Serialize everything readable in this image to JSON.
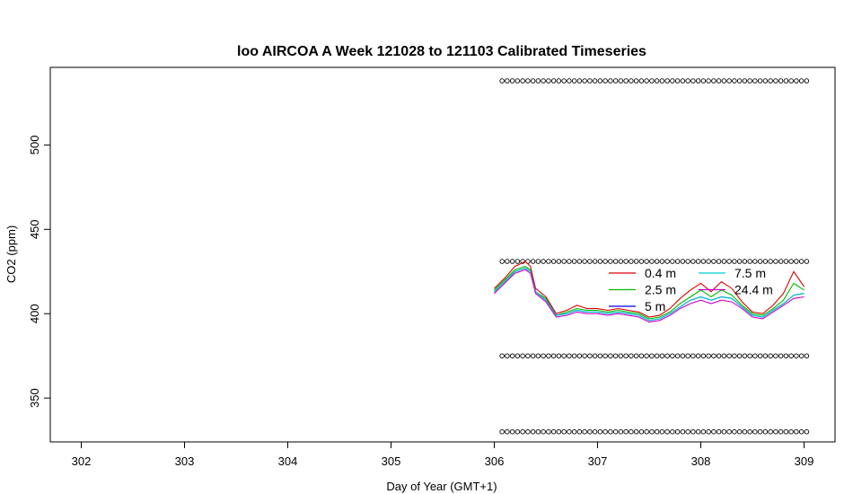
{
  "chart_data": {
    "type": "line",
    "title": "loo AIRCOA A  Week 121028 to 121103  Calibrated Timeseries",
    "xlabel": "Day of Year (GMT+1)",
    "ylabel": "CO2 (ppm)",
    "xlim": [
      301.7,
      309.3
    ],
    "ylim": [
      324,
      546
    ],
    "x_ticks": [
      302,
      303,
      304,
      305,
      306,
      307,
      308,
      309
    ],
    "y_ticks": [
      350,
      400,
      450,
      500
    ],
    "grid": false,
    "legend": {
      "placement": "right",
      "columns": 2
    },
    "x": [
      306.0,
      306.1,
      306.2,
      306.3,
      306.35,
      306.4,
      306.5,
      306.6,
      306.7,
      306.8,
      306.9,
      307.0,
      307.1,
      307.2,
      307.3,
      307.4,
      307.5,
      307.6,
      307.7,
      307.8,
      307.9,
      308.0,
      308.1,
      308.2,
      308.3,
      308.4,
      308.5,
      308.6,
      308.7,
      308.8,
      308.9,
      309.0
    ],
    "series": [
      {
        "name": "0.4 m",
        "color": "#dd0000",
        "values": [
          415,
          421,
          428,
          431,
          428,
          415,
          410,
          400,
          402,
          405,
          403,
          403,
          402,
          403,
          402,
          401,
          398,
          399,
          403,
          409,
          414,
          418,
          413,
          419,
          415,
          407,
          401,
          400,
          405,
          412,
          425,
          416
        ]
      },
      {
        "name": "2.5 m",
        "color": "#00bb00",
        "values": [
          414,
          420,
          426,
          428,
          426,
          413,
          409,
          399,
          401,
          403,
          402,
          402,
          401,
          402,
          401,
          400,
          397,
          398,
          401,
          406,
          410,
          414,
          410,
          414,
          411,
          405,
          400,
          399,
          403,
          408,
          418,
          414
        ]
      },
      {
        "name": "5 m",
        "color": "#0000dd",
        "values": [
          413,
          419,
          425,
          427,
          425,
          413,
          408,
          399,
          400,
          402,
          401,
          401,
          400,
          401,
          400,
          399,
          396,
          397,
          400,
          404,
          408,
          410,
          408,
          410,
          409,
          404,
          399,
          398,
          402,
          406,
          411,
          412
        ]
      },
      {
        "name": "7.5 m",
        "color": "#00cccc",
        "values": [
          413,
          419,
          425,
          427,
          425,
          413,
          408,
          399,
          400,
          402,
          401,
          401,
          400,
          401,
          400,
          399,
          396,
          397,
          400,
          404,
          408,
          410,
          408,
          410,
          409,
          404,
          399,
          398,
          402,
          406,
          411,
          412
        ]
      },
      {
        "name": "24.4 m",
        "color": "#cc00cc",
        "values": [
          412,
          418,
          424,
          426,
          424,
          412,
          407,
          398,
          399,
          401,
          400,
          400,
          399,
          400,
          399,
          398,
          395,
          396,
          399,
          403,
          406,
          408,
          406,
          408,
          407,
          403,
          398,
          397,
          401,
          405,
          409,
          410
        ]
      }
    ],
    "calibration_points": {
      "x": [
        306.1,
        306.2,
        306.3,
        306.4,
        306.5,
        306.6,
        306.7,
        306.8,
        306.9,
        307.0,
        307.1,
        307.2,
        307.3,
        307.4,
        307.5,
        307.6,
        307.7,
        307.8,
        307.9,
        308.0,
        308.1,
        308.2,
        308.3,
        308.4,
        308.5,
        308.6,
        308.7,
        308.8,
        308.9,
        309.0
      ],
      "levels": [
        330,
        375,
        431,
        538
      ]
    }
  }
}
